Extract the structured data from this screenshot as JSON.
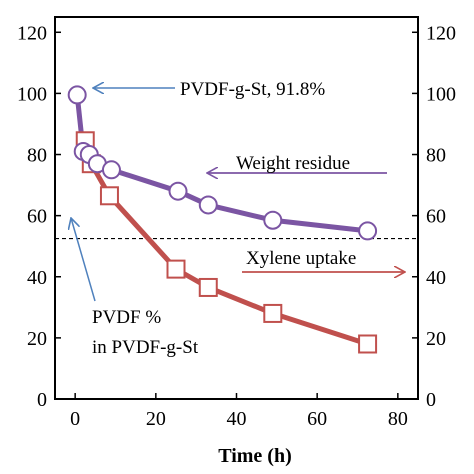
{
  "chart_data": {
    "type": "line",
    "xlabel": "Time (h)",
    "ylabel": "",
    "xlim": [
      -5,
      85
    ],
    "ylim": [
      0,
      125
    ],
    "x_ticks": [
      0,
      20,
      40,
      60,
      80
    ],
    "y_ticks": [
      0,
      20,
      40,
      60,
      80,
      100,
      120
    ],
    "grid": false,
    "series": [
      {
        "name": "Weight residue",
        "color": "#7b55a3",
        "marker": "circle",
        "points": [
          [
            0.5,
            99.5
          ],
          [
            2,
            81
          ],
          [
            3.5,
            80
          ],
          [
            5.5,
            77
          ],
          [
            9,
            75
          ],
          [
            25.5,
            68
          ],
          [
            33,
            63.5
          ],
          [
            49,
            58.5
          ],
          [
            72.5,
            55
          ]
        ]
      },
      {
        "name": "Xylene uptake",
        "color": "#c0504d",
        "marker": "square",
        "points": [
          [
            2.5,
            84.5
          ],
          [
            4,
            77
          ],
          [
            8.5,
            66.5
          ],
          [
            25,
            42.5
          ],
          [
            33,
            36.5
          ],
          [
            49,
            28
          ],
          [
            72.5,
            18
          ]
        ]
      }
    ],
    "reference_line": {
      "y": 52.5,
      "style": "dashed",
      "color": "#000000"
    },
    "annotations": {
      "pvdf_g_st": "PVDF-g-St, 91.8%",
      "weight_residue": "Weight residue",
      "xylene_uptake": "Xylene uptake",
      "pvdf_percent_line1": "PVDF %",
      "pvdf_percent_line2": "in PVDF-g-St"
    },
    "annotation_colors": {
      "pvdf_arrow": "#4f81bd",
      "weight_arrow": "#7b55a3",
      "xylene_arrow": "#c0504d"
    }
  }
}
